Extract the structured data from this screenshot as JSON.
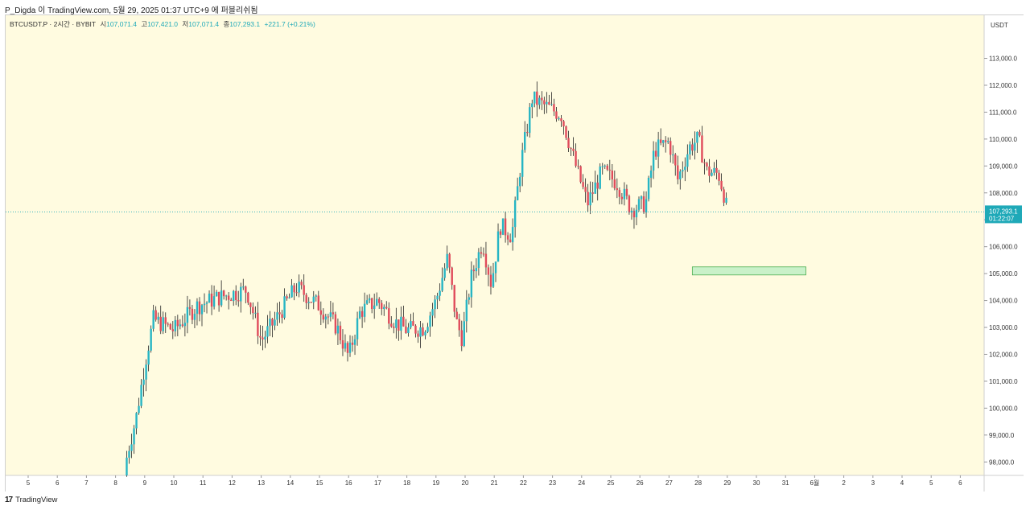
{
  "header": {
    "caption": "P_Digda 이 TradingView.com, 5월 29, 2025 01:37 UTC+9 에 퍼블리쉬됨"
  },
  "legend": {
    "symbol": "BTCUSDT.P · 2시간 · BYBIT",
    "open_label": "시",
    "open": "107,071.4",
    "high_label": "고",
    "high": "107,421.0",
    "low_label": "저",
    "low": "107,071.4",
    "close_label": "종",
    "close": "107,293.1",
    "change": "+221.7 (+0.21%)"
  },
  "price_axis": {
    "currency": "USDT",
    "last_price": "107,293.1",
    "countdown": "01:22:07"
  },
  "footer": {
    "brand": "TradingView",
    "logo": "17"
  },
  "colors": {
    "up": "#26b5c4",
    "down": "#e04b5b",
    "background": "#fffbe0",
    "zone_fill": "#c9f1c9",
    "zone_stroke": "#4caf50",
    "price_tag": "#1fa9b8"
  },
  "chart_data": {
    "type": "candlestick",
    "x_tick_labels": [
      "5",
      "6",
      "7",
      "8",
      "9",
      "10",
      "11",
      "12",
      "13",
      "14",
      "15",
      "16",
      "17",
      "18",
      "19",
      "20",
      "21",
      "22",
      "23",
      "24",
      "25",
      "26",
      "27",
      "28",
      "29",
      "30",
      "31",
      "6월",
      "2",
      "3",
      "4",
      "5",
      "6"
    ],
    "y_tick_labels": [
      "113,000.0",
      "112,000.0",
      "111,000.0",
      "110,000.0",
      "109,000.0",
      "108,000.0",
      "107,000.0",
      "106,000.0",
      "105,000.0",
      "104,000.0",
      "103,000.0",
      "102,000.0",
      "101,000.0",
      "100,000.0",
      "99,000.0",
      "98,000.0"
    ],
    "y_ticks": [
      113000,
      112000,
      111000,
      110000,
      109000,
      108000,
      107000,
      106000,
      105000,
      104000,
      103000,
      102000,
      101000,
      100000,
      99000,
      98000
    ],
    "ylim": [
      97500,
      114600
    ],
    "xlim": [
      4.5,
      6.5
    ],
    "last_price": 107293.1,
    "zone": {
      "x_start": 27.8,
      "x_end": 31.7,
      "y_low": 104950,
      "y_high": 105250
    },
    "daily_path": [
      {
        "day": 8.3,
        "price": 97500
      },
      {
        "day": 8.4,
        "price": 98300
      },
      {
        "day": 8.7,
        "price": 99600
      },
      {
        "day": 9.0,
        "price": 101600
      },
      {
        "day": 9.3,
        "price": 103300
      },
      {
        "day": 10.0,
        "price": 102900
      },
      {
        "day": 10.8,
        "price": 103800
      },
      {
        "day": 11.5,
        "price": 104100
      },
      {
        "day": 12.5,
        "price": 104400
      },
      {
        "day": 13.0,
        "price": 102500
      },
      {
        "day": 13.5,
        "price": 103300
      },
      {
        "day": 14.2,
        "price": 104500
      },
      {
        "day": 15.0,
        "price": 103800
      },
      {
        "day": 15.6,
        "price": 103000
      },
      {
        "day": 16.0,
        "price": 101900
      },
      {
        "day": 16.4,
        "price": 103600
      },
      {
        "day": 17.0,
        "price": 104000
      },
      {
        "day": 17.6,
        "price": 103200
      },
      {
        "day": 18.0,
        "price": 102900
      },
      {
        "day": 18.6,
        "price": 103000
      },
      {
        "day": 19.0,
        "price": 104000
      },
      {
        "day": 19.4,
        "price": 105600
      },
      {
        "day": 19.7,
        "price": 103200
      },
      {
        "day": 19.9,
        "price": 102600
      },
      {
        "day": 20.2,
        "price": 104800
      },
      {
        "day": 20.6,
        "price": 106200
      },
      {
        "day": 20.9,
        "price": 104600
      },
      {
        "day": 21.2,
        "price": 106800
      },
      {
        "day": 21.6,
        "price": 106400
      },
      {
        "day": 21.9,
        "price": 109000
      },
      {
        "day": 22.3,
        "price": 111500
      },
      {
        "day": 22.8,
        "price": 111200
      },
      {
        "day": 23.3,
        "price": 110900
      },
      {
        "day": 23.8,
        "price": 109000
      },
      {
        "day": 24.2,
        "price": 107600
      },
      {
        "day": 24.7,
        "price": 108800
      },
      {
        "day": 25.2,
        "price": 108400
      },
      {
        "day": 25.7,
        "price": 107400
      },
      {
        "day": 26.2,
        "price": 107600
      },
      {
        "day": 26.5,
        "price": 109600
      },
      {
        "day": 27.0,
        "price": 109900
      },
      {
        "day": 27.3,
        "price": 108500
      },
      {
        "day": 27.7,
        "price": 109700
      },
      {
        "day": 28.0,
        "price": 110000
      },
      {
        "day": 28.3,
        "price": 108800
      },
      {
        "day": 28.7,
        "price": 108700
      },
      {
        "day": 28.9,
        "price": 107900
      },
      {
        "day": 29.0,
        "price": 107293.1
      }
    ]
  }
}
